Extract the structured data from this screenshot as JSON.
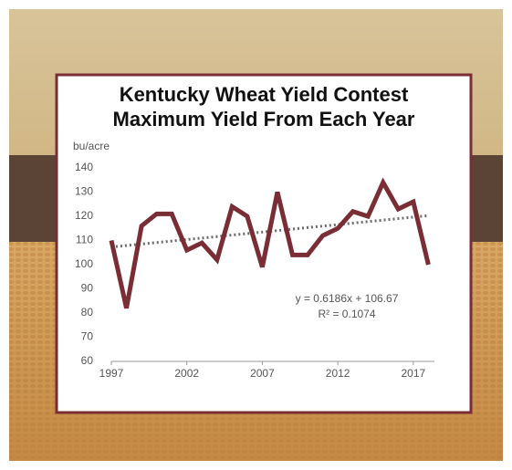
{
  "chart_data": {
    "type": "line",
    "title": "Kentucky Wheat Yield Contest",
    "subtitle": "Maximum Yield From Each Year",
    "y_label": "bu/acre",
    "x": [
      1997,
      1998,
      1999,
      2000,
      2001,
      2002,
      2003,
      2004,
      2005,
      2006,
      2007,
      2008,
      2009,
      2010,
      2011,
      2012,
      2013,
      2014,
      2015,
      2016,
      2017,
      2018
    ],
    "series": [
      {
        "name": "Maximum Yield",
        "color": "#7b2d35",
        "values": [
          110,
          82,
          116,
          121,
          121,
          106,
          109,
          102,
          124,
          120,
          99,
          130,
          104,
          104,
          112,
          115,
          122,
          120,
          134,
          123,
          126,
          100
        ]
      }
    ],
    "trendline": {
      "label": "y = 0.6186x + 106.67",
      "slope": 0.6186,
      "intercept": 106.67,
      "r2_label": "R² = 0.1074",
      "color": "#6b6b6b"
    },
    "xlim": [
      1997,
      2018.4
    ],
    "ylim": [
      60,
      140
    ],
    "xticks": [
      1997,
      2002,
      2007,
      2012,
      2017
    ],
    "yticks": [
      60,
      70,
      80,
      90,
      100,
      110,
      120,
      130,
      140
    ]
  }
}
